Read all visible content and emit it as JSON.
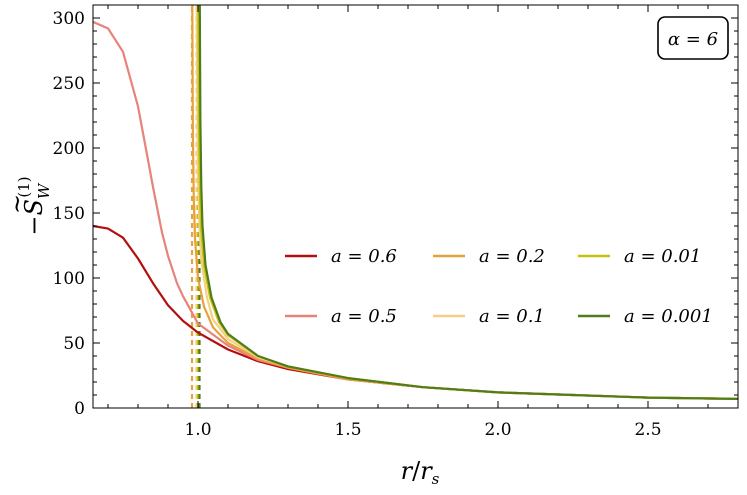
{
  "chart_data": {
    "type": "line",
    "xlabel": "r/r_s",
    "ylabel": "−S̃_W^(1)",
    "xlim": [
      0.65,
      2.8
    ],
    "ylim": [
      0,
      310
    ],
    "xticks": [
      1.0,
      1.5,
      2.0,
      2.5
    ],
    "xtick_labels": [
      "1.0",
      "1.5",
      "2.0",
      "2.5"
    ],
    "yticks": [
      0,
      50,
      100,
      150,
      200,
      250,
      300
    ],
    "ytick_labels": [
      "0",
      "50",
      "100",
      "150",
      "200",
      "250",
      "300"
    ],
    "annotation": "α = 6",
    "grid": false,
    "legend_position": "center-right",
    "series": [
      {
        "name": "a = 0.6",
        "color": "#b30f0f",
        "dashed_asymptote": null,
        "x": [
          0.65,
          0.7,
          0.75,
          0.8,
          0.85,
          0.9,
          0.95,
          1.0,
          1.1,
          1.2,
          1.3,
          1.5,
          1.75,
          2.0,
          2.25,
          2.5,
          2.8
        ],
        "y": [
          140,
          138,
          131,
          115,
          96,
          79,
          67,
          58,
          45,
          36,
          30,
          22,
          16,
          12,
          10,
          8,
          7
        ]
      },
      {
        "name": "a = 0.5",
        "color": "#e8837a",
        "dashed_asymptote": null,
        "x": [
          0.65,
          0.7,
          0.75,
          0.8,
          0.83,
          0.85,
          0.88,
          0.9,
          0.93,
          0.95,
          1.0,
          1.1,
          1.2,
          1.3,
          1.5,
          1.75,
          2.0,
          2.25,
          2.5,
          2.8
        ],
        "y": [
          297,
          292,
          274,
          232,
          195,
          170,
          135,
          117,
          96,
          86,
          65,
          48,
          37,
          31,
          22,
          16,
          12,
          10,
          8,
          7
        ]
      },
      {
        "name": "a = 0.2",
        "color": "#e6a23c",
        "dashed_asymptote": 0.98,
        "x": [
          0.981,
          0.983,
          0.986,
          0.99,
          1.0,
          1.02,
          1.05,
          1.1,
          1.2,
          1.3,
          1.5,
          1.75,
          2.0,
          2.25,
          2.5,
          2.8
        ],
        "y": [
          310,
          210,
          160,
          130,
          100,
          78,
          62,
          50,
          38,
          31,
          22,
          16,
          12,
          10,
          8,
          7
        ]
      },
      {
        "name": "a = 0.1",
        "color": "#f6cf84",
        "dashed_asymptote": 0.995,
        "x": [
          0.996,
          0.998,
          1.0,
          1.005,
          1.01,
          1.03,
          1.05,
          1.1,
          1.2,
          1.3,
          1.5,
          1.75,
          2.0,
          2.25,
          2.5,
          2.8
        ],
        "y": [
          310,
          230,
          180,
          140,
          115,
          85,
          68,
          53,
          39,
          32,
          23,
          16,
          12,
          10,
          8,
          7
        ]
      },
      {
        "name": "a = 0.01",
        "color": "#c5c20e",
        "dashed_asymptote": 1.0,
        "x": [
          1.001,
          1.003,
          1.006,
          1.01,
          1.02,
          1.04,
          1.07,
          1.1,
          1.2,
          1.3,
          1.5,
          1.75,
          2.0,
          2.25,
          2.5,
          2.8
        ],
        "y": [
          310,
          220,
          170,
          140,
          110,
          85,
          66,
          56,
          40,
          32,
          23,
          16,
          12,
          10,
          8,
          7
        ]
      },
      {
        "name": "a = 0.001",
        "color": "#4f7d1b",
        "dashed_asymptote": 1.005,
        "x": [
          1.006,
          1.008,
          1.011,
          1.015,
          1.025,
          1.045,
          1.075,
          1.1,
          1.2,
          1.3,
          1.5,
          1.75,
          2.0,
          2.25,
          2.5,
          2.8
        ],
        "y": [
          310,
          220,
          170,
          140,
          110,
          85,
          66,
          57,
          40,
          32,
          23,
          16,
          12,
          10,
          8,
          7
        ]
      }
    ]
  }
}
